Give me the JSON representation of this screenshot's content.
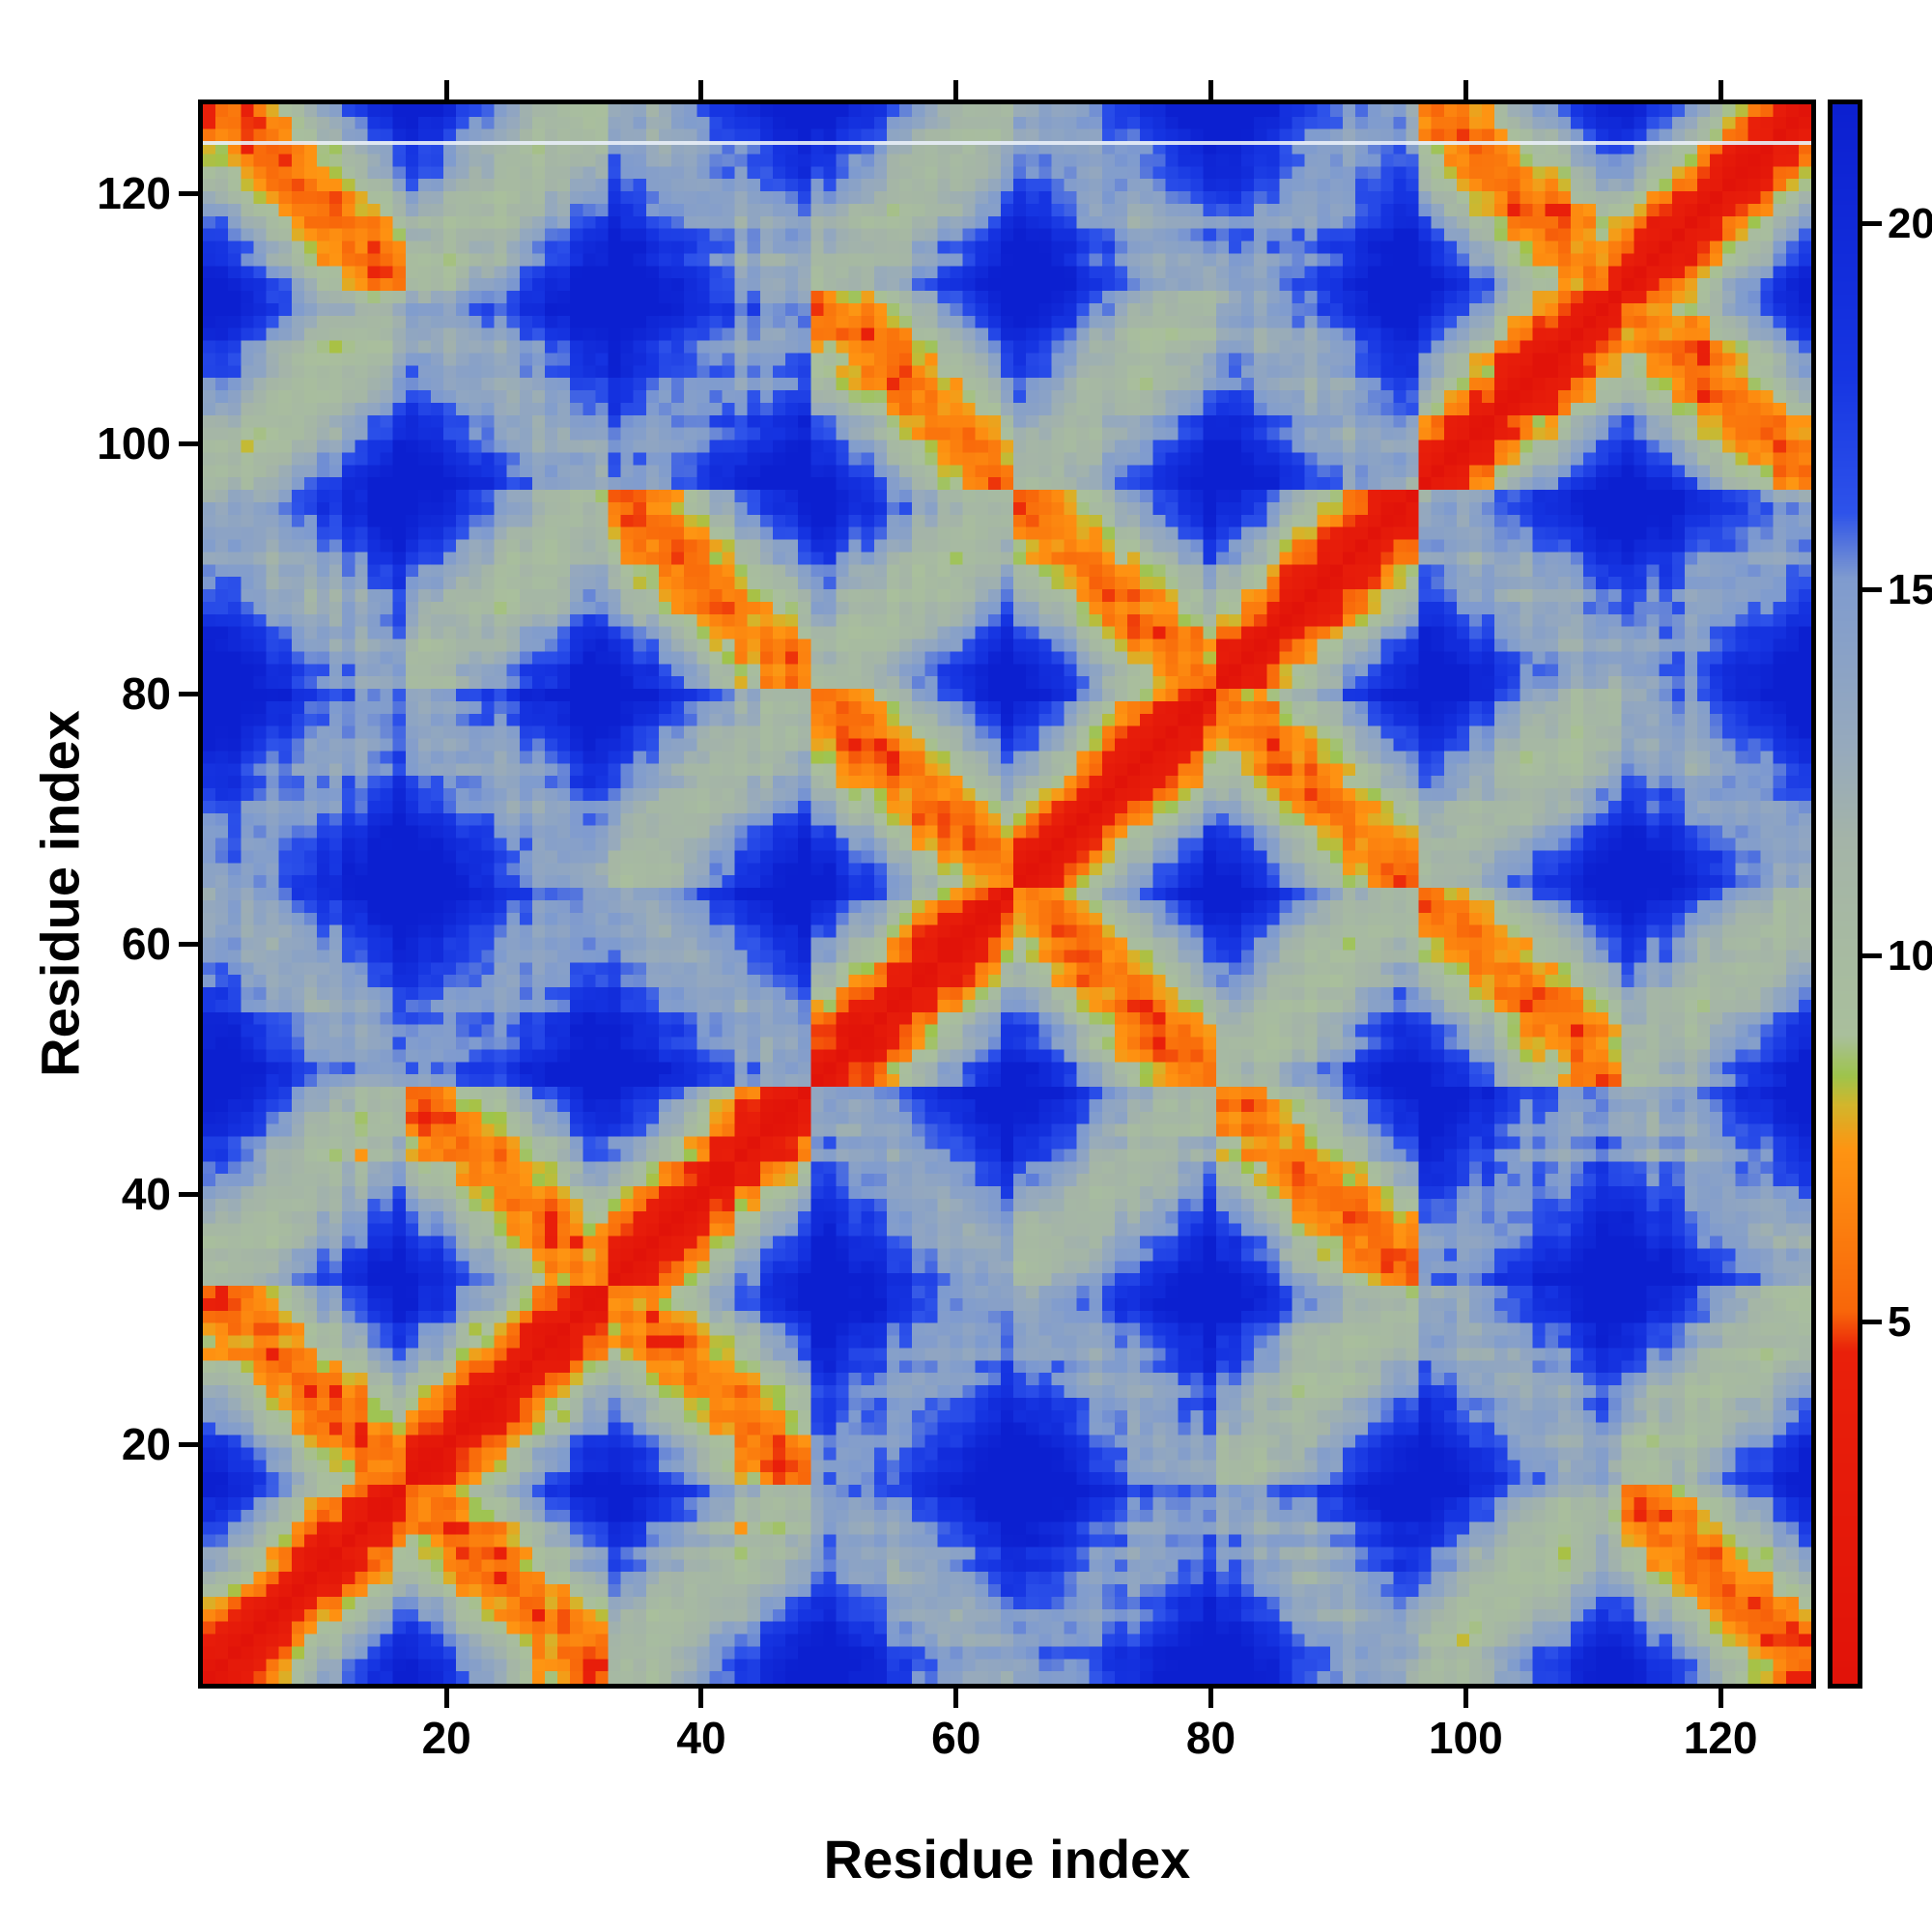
{
  "figure": {
    "background": "#ffffff"
  },
  "chart_data": {
    "type": "heatmap",
    "title": "",
    "xlabel": "Residue index",
    "ylabel": "Residue index",
    "x_range": [
      1,
      127
    ],
    "y_range": [
      1,
      127
    ],
    "x_ticks": [
      20,
      40,
      60,
      80,
      100,
      120
    ],
    "y_ticks": [
      20,
      40,
      60,
      80,
      100,
      120
    ],
    "grid": false,
    "symmetric": true,
    "diagonal_value": 0,
    "colorbar": {
      "side": "right",
      "ticks": [
        5,
        10,
        15,
        20
      ],
      "vmin": 0,
      "vmax": 21.7
    },
    "colormap_stops": [
      [
        0.0,
        "#e11309"
      ],
      [
        4.55,
        "#e9200a"
      ],
      [
        5.1,
        "#f8660a"
      ],
      [
        7.35,
        "#fe9512"
      ],
      [
        7.95,
        "#d2b62c"
      ],
      [
        8.35,
        "#9ec44c"
      ],
      [
        8.9,
        "#a9bf9c"
      ],
      [
        11.6,
        "#a4b4a8"
      ],
      [
        12.8,
        "#97aabc"
      ],
      [
        15.2,
        "#7f9bcf"
      ],
      [
        16.1,
        "#2e53ea"
      ],
      [
        18.0,
        "#1635e2"
      ],
      [
        21.7,
        "#0c20d0"
      ]
    ],
    "matrix_model": {
      "n_residues": 127,
      "n_strands": 8,
      "strand_length": 16,
      "barrel_radius": 7.2,
      "rise_per_residue": 1.5,
      "spatial_order": [
        0,
        1,
        2,
        5,
        4,
        3,
        6,
        7
      ],
      "coord_jitter": 0.95,
      "pair_noise": 0.7
    },
    "artifact_row": {
      "residue": 124,
      "color": "rgba(232,238,247,0.9)"
    }
  }
}
